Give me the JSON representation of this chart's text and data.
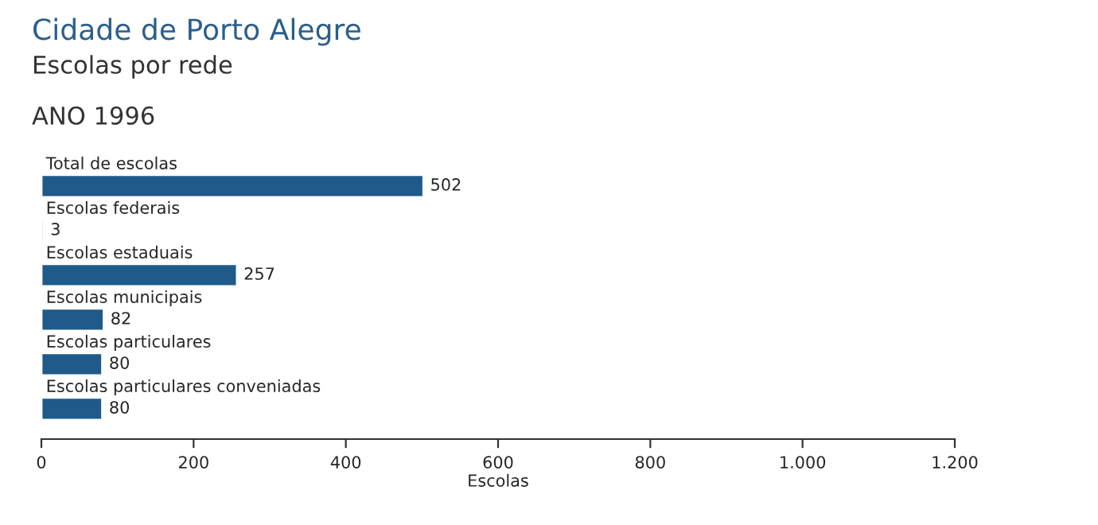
{
  "chart_data": {
    "type": "bar",
    "orientation": "horizontal",
    "title": "Cidade de Porto Alegre",
    "subtitle": "Escolas por rede",
    "annotations": [
      "ANO 1996"
    ],
    "categories": [
      "Total de escolas",
      "Escolas federais",
      "Escolas estaduais",
      "Escolas municipais",
      "Escolas particulares",
      "Escolas particulares conveniadas"
    ],
    "values": [
      502,
      3,
      257,
      82,
      80,
      80
    ],
    "color": "#1f5a8a",
    "data_labels": true,
    "xlabel": "Escolas",
    "xlim": [
      0,
      1200
    ],
    "xticks": [
      0,
      200,
      400,
      600,
      800,
      {
        "value": 1000,
        "label": "1.000"
      },
      {
        "value": 1200,
        "label": "1.200"
      }
    ],
    "grid": false,
    "legend": false
  }
}
